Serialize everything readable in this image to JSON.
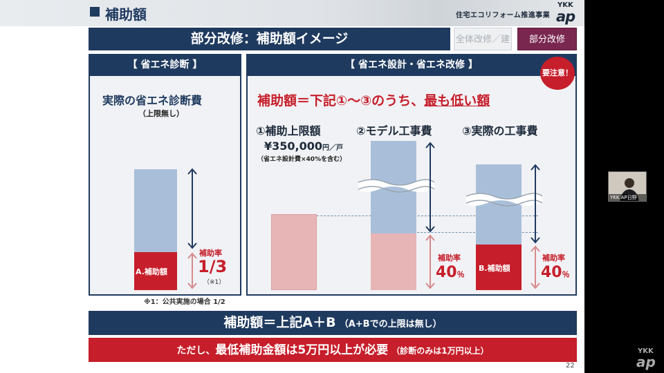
{
  "header": {
    "section_title": "補助額",
    "subtitle": "住宅エコリフォーム推進事業",
    "logo_top": "YKK",
    "logo_bottom": "ap"
  },
  "title_bar": "部分改修：補助額イメージ",
  "tabs": [
    {
      "label": "全体改修／建替",
      "active": false
    },
    {
      "label": "部分改修",
      "active": true
    }
  ],
  "left_panel": {
    "header": "【 省エネ診断 】",
    "title": "実際の省エネ診断費",
    "subtitle": "（上限無し）",
    "bar_label": "A.補助額",
    "rate_label": "補助率",
    "rate_value": "1/3",
    "rate_note": "（※1）",
    "footnote": "※1：公共実施の場合 1/2"
  },
  "right_panel": {
    "header": "【 省エネ設計・省エネ改修 】",
    "badge": "要注意！",
    "headline_pre": "補助額＝下記①～③のうち、",
    "headline_em": "最も低い額",
    "col1_title": "①補助上限額",
    "col1_amount": "¥350,000",
    "col1_unit": "円／戸",
    "col1_note": "（省エネ設計費×40%を含む）",
    "col2_title": "②モデル工事費",
    "col3_title": "③実際の工事費",
    "rate_label_1": "補助率",
    "rate_value_1": "40",
    "rate_unit_1": "％",
    "bar3_label": "B.補助額",
    "rate_label_2": "補助率",
    "rate_value_2": "40",
    "rate_unit_2": "％"
  },
  "summary": {
    "main": "補助額＝上記A＋B",
    "note": "（A+Bでの上限は無し）"
  },
  "warning": {
    "pre": "ただし、",
    "main": "最低補助金額は5万円以上が必要",
    "note": "（診断のみは1万円以上）"
  },
  "page_number": "22",
  "webcam": {
    "label": "YKK AP日野"
  },
  "colors": {
    "navy": "#1f3a5f",
    "red": "#c61e2a",
    "light_blue": "#a9bfd9",
    "pink": "#e8b5b7",
    "tab_active": "#7a2750"
  }
}
